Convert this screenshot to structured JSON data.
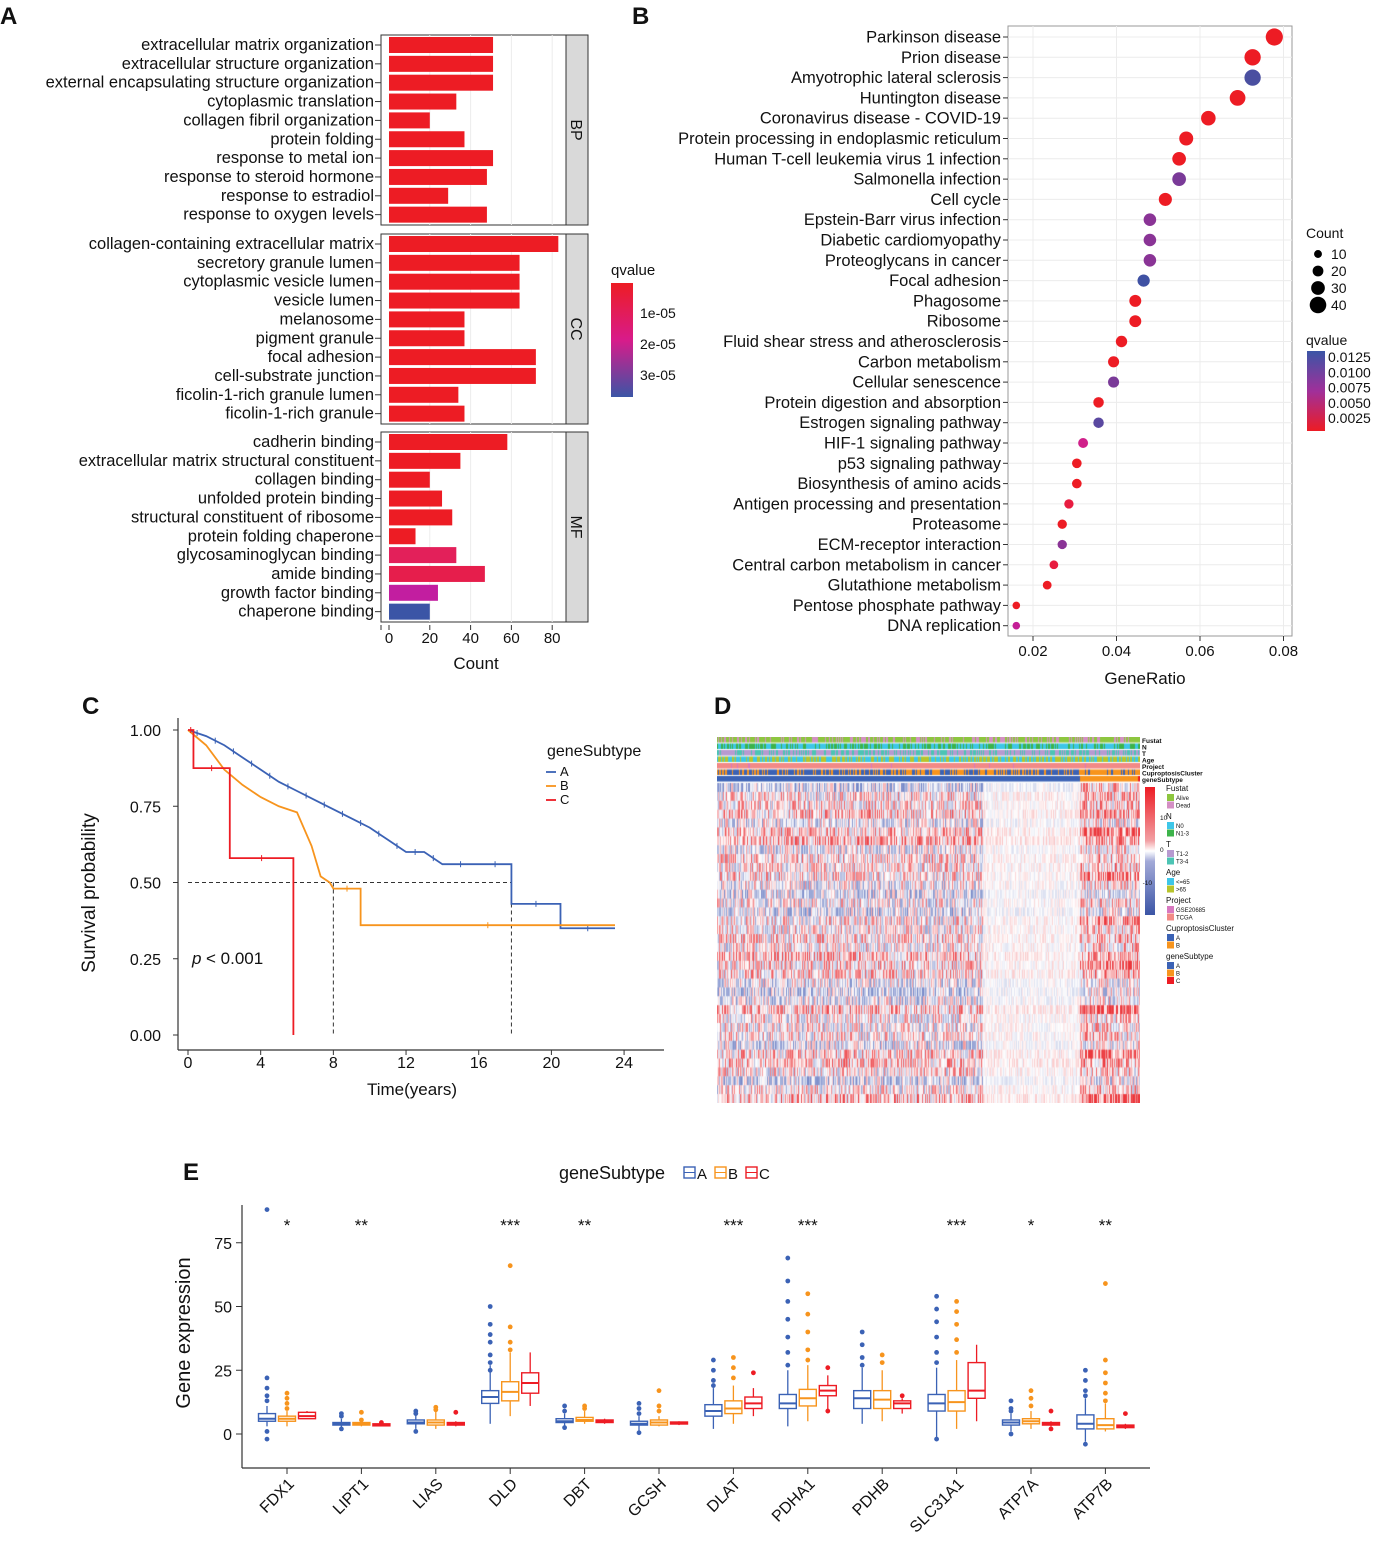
{
  "panel_labels": {
    "A": "A",
    "B": "B",
    "C": "C",
    "D": "D",
    "E": "E"
  },
  "chart_data": [
    {
      "id": "A",
      "type": "bar",
      "orientation": "horizontal",
      "xlabel": "Count",
      "xticks": [
        0,
        20,
        40,
        60,
        80
      ],
      "xlim": [
        0,
        88
      ],
      "legend": {
        "title": "qvalue",
        "ticks": [
          "1e-05",
          "2e-05",
          "3e-05"
        ]
      },
      "facets": [
        {
          "name": "BP",
          "categories": [
            "extracellular matrix organization",
            "extracellular structure organization",
            "external encapsulating structure organization",
            "cytoplasmic translation",
            "collagen fibril organization",
            "protein folding",
            "response to metal ion",
            "response to steroid hormone",
            "response to estradiol",
            "response to oxygen levels"
          ],
          "values": [
            51,
            51,
            51,
            33,
            20,
            37,
            51,
            48,
            29,
            48
          ],
          "colors": [
            "#ed1c24",
            "#ed1c24",
            "#ed1c24",
            "#ed1c24",
            "#ed1c24",
            "#ed1c24",
            "#ed1c24",
            "#ed1c24",
            "#ed1c24",
            "#ed1c24"
          ]
        },
        {
          "name": "CC",
          "categories": [
            "collagen-containing extracellular matrix",
            "secretory granule lumen",
            "cytoplasmic vesicle lumen",
            "vesicle lumen",
            "melanosome",
            "pigment granule",
            "focal adhesion",
            "cell-substrate junction",
            "ficolin-1-rich granule lumen",
            "ficolin-1-rich granule"
          ],
          "values": [
            83,
            64,
            64,
            64,
            37,
            37,
            72,
            72,
            34,
            37
          ],
          "colors": [
            "#ed1c24",
            "#ed1c24",
            "#ed1c24",
            "#ed1c24",
            "#ed1c24",
            "#ed1c24",
            "#ed1c24",
            "#ed1c24",
            "#ed1c24",
            "#ed1c24"
          ]
        },
        {
          "name": "MF",
          "categories": [
            "cadherin binding",
            "extracellular matrix structural constituent",
            "collagen binding",
            "unfolded protein binding",
            "structural constituent of ribosome",
            "protein folding chaperone",
            "glycosaminoglycan binding",
            "amide binding",
            "growth factor binding",
            "chaperone binding"
          ],
          "values": [
            58,
            35,
            20,
            26,
            31,
            13,
            33,
            47,
            24,
            20
          ],
          "colors": [
            "#ed1c24",
            "#ed1c24",
            "#ed1c24",
            "#ed1c24",
            "#ed1c24",
            "#ed1c24",
            "#e3205a",
            "#e61e4c",
            "#c21ea0",
            "#3b55a6"
          ]
        }
      ]
    },
    {
      "id": "B",
      "type": "scatter",
      "xlabel": "GeneRatio",
      "xticks": [
        "0.02",
        "0.04",
        "0.06",
        "0.08"
      ],
      "xlim": [
        0.013,
        0.081
      ],
      "size_legend": {
        "title": "Count",
        "values": [
          10,
          20,
          30,
          40
        ]
      },
      "color_legend": {
        "title": "qvalue",
        "ticks": [
          "0.0125",
          "0.0100",
          "0.0075",
          "0.0050",
          "0.0025"
        ]
      },
      "categories": [
        "Parkinson disease",
        "Prion disease",
        "Amyotrophic lateral sclerosis",
        "Huntington disease",
        "Coronavirus disease - COVID-19",
        "Protein processing in endoplasmic reticulum",
        "Human T-cell leukemia virus 1 infection",
        "Salmonella infection",
        "Cell cycle",
        "Epstein-Barr virus infection",
        "Diabetic cardiomyopathy",
        "Proteoglycans in cancer",
        "Focal adhesion",
        "Phagosome",
        "Ribosome",
        "Fluid shear stress and atherosclerosis",
        "Carbon metabolism",
        "Cellular senescence",
        "Protein digestion and absorption",
        "Estrogen signaling pathway",
        "HIF-1 signaling pathway",
        "p53 signaling pathway",
        "Biosynthesis of amino acids",
        "Antigen processing and presentation",
        "Proteasome",
        "ECM-receptor interaction",
        "Central carbon metabolism in cancer",
        "Glutathione metabolism",
        "Pentose phosphate pathway",
        "DNA replication"
      ],
      "x": [
        0.0778,
        0.0726,
        0.0726,
        0.069,
        0.062,
        0.0567,
        0.055,
        0.055,
        0.0517,
        0.048,
        0.048,
        0.048,
        0.0465,
        0.0445,
        0.0445,
        0.0412,
        0.0393,
        0.0393,
        0.0357,
        0.0357,
        0.032,
        0.0305,
        0.0305,
        0.0286,
        0.027,
        0.027,
        0.025,
        0.0234,
        0.016,
        0.016
      ],
      "count": [
        42,
        39,
        39,
        37,
        33,
        31,
        30,
        30,
        28,
        26,
        26,
        26,
        25,
        24,
        24,
        22,
        21,
        21,
        19,
        19,
        17,
        16,
        16,
        15,
        15,
        15,
        13,
        13,
        9,
        9
      ],
      "colors": [
        "#ed1c24",
        "#ed1c24",
        "#4a4fa0",
        "#ed1c24",
        "#ed1c24",
        "#ed1c24",
        "#ed1c24",
        "#7a3a98",
        "#ed1c24",
        "#8a3496",
        "#8a3496",
        "#8a3496",
        "#3f51a3",
        "#ed1c24",
        "#ed1c24",
        "#ed1c24",
        "#ed1c24",
        "#7a3a98",
        "#ed1c24",
        "#5a48a0",
        "#d0208a",
        "#ed1c24",
        "#ed1c24",
        "#e81c40",
        "#ed1c24",
        "#8a3496",
        "#e81c40",
        "#ed1c24",
        "#ed1c24",
        "#c41e96"
      ]
    },
    {
      "id": "C",
      "type": "line",
      "subtype": "kaplan-meier",
      "xlabel": "Time(years)",
      "ylabel": "Survival probability",
      "xticks": [
        0,
        4,
        8,
        12,
        16,
        20,
        24
      ],
      "yticks": [
        "0.00",
        "0.25",
        "0.50",
        "0.75",
        "1.00"
      ],
      "pvalue_prefix": "p",
      "pvalue_text": " < 0.001",
      "legend": {
        "title": "geneSubtype"
      },
      "medians": [
        5.8,
        8,
        17.8
      ],
      "series": [
        {
          "name": "A",
          "color": "#3b62b5",
          "x": [
            0,
            1,
            2,
            3,
            4,
            5,
            6,
            7,
            8,
            9,
            10,
            11,
            12,
            13,
            14,
            16,
            17.8,
            17.8,
            20.5,
            20.5,
            23.5
          ],
          "y": [
            1,
            0.98,
            0.95,
            0.91,
            0.87,
            0.83,
            0.8,
            0.77,
            0.74,
            0.71,
            0.68,
            0.64,
            0.6,
            0.6,
            0.56,
            0.56,
            0.56,
            0.43,
            0.43,
            0.35,
            0.35
          ]
        },
        {
          "name": "B",
          "color": "#f7941d",
          "x": [
            0,
            1,
            2,
            3,
            4,
            5,
            6,
            6.8,
            7.3,
            7.8,
            8,
            9.5,
            9.5,
            23.5
          ],
          "y": [
            1,
            0.95,
            0.87,
            0.82,
            0.78,
            0.75,
            0.73,
            0.62,
            0.52,
            0.5,
            0.48,
            0.48,
            0.36,
            0.36
          ]
        },
        {
          "name": "C",
          "color": "#ed1c24",
          "x": [
            0,
            0.3,
            0.3,
            2.3,
            2.3,
            5.8,
            5.8
          ],
          "y": [
            1,
            1,
            0.875,
            0.875,
            0.58,
            0.58,
            0
          ]
        }
      ]
    },
    {
      "id": "D",
      "type": "heatmap",
      "tracks": [
        "Fustat",
        "N",
        "T",
        "Age",
        "Project",
        "CuproptosisCluster",
        "geneSubtype"
      ],
      "scale_ticks": [
        "10",
        "0",
        "-10"
      ],
      "legend": [
        {
          "title": "Fustat",
          "items": [
            {
              "label": "Alive",
              "color": "#8dc63f"
            },
            {
              "label": "Dead",
              "color": "#d48fc4"
            }
          ]
        },
        {
          "title": "N",
          "items": [
            {
              "label": "N0",
              "color": "#3ec6e8"
            },
            {
              "label": "N1-3",
              "color": "#3cb34a"
            }
          ]
        },
        {
          "title": "T",
          "items": [
            {
              "label": "T1-2",
              "color": "#b79ad0"
            },
            {
              "label": "T3-4",
              "color": "#4cc4b4"
            }
          ]
        },
        {
          "title": "Age",
          "items": [
            {
              "label": "<=65",
              "color": "#3ec6e8"
            },
            {
              "label": ">65",
              "color": "#b8c42c"
            }
          ]
        },
        {
          "title": "Project",
          "items": [
            {
              "label": "GSE20685",
              "color": "#d878c0"
            },
            {
              "label": "TCGA",
              "color": "#f28a86"
            }
          ]
        },
        {
          "title": "CuproptosisCluster",
          "items": [
            {
              "label": "A",
              "color": "#3b62b5"
            },
            {
              "label": "B",
              "color": "#f7941d"
            }
          ]
        },
        {
          "title": "geneSubtype",
          "items": [
            {
              "label": "A",
              "color": "#3b62b5"
            },
            {
              "label": "B",
              "color": "#f7941d"
            },
            {
              "label": "C",
              "color": "#ed1c24"
            }
          ]
        }
      ]
    },
    {
      "id": "E",
      "type": "box",
      "ylabel": "Gene expression",
      "yticks": [
        0,
        25,
        50,
        75
      ],
      "ylim": [
        -6,
        90
      ],
      "legend": {
        "title": "geneSubtype",
        "groups": [
          "A",
          "B",
          "C"
        ],
        "colors": [
          "#3b62b5",
          "#f7941d",
          "#ed1c24"
        ]
      },
      "categories": [
        "FDX1",
        "LIPT1",
        "LIAS",
        "DLD",
        "DBT",
        "GCSH",
        "DLAT",
        "PDHA1",
        "PDHB",
        "SLC31A1",
        "ATP7A",
        "ATP7B"
      ],
      "significance": [
        "*",
        "**",
        "",
        "***",
        "**",
        "",
        "***",
        "***",
        "",
        "***",
        "*",
        "**"
      ],
      "stats_order": [
        "min",
        "q1",
        "median",
        "q3",
        "max"
      ],
      "series": [
        {
          "name": "A",
          "stats": [
            [
              3,
              5,
              6,
              8,
              11
            ],
            [
              2,
              3.5,
              4,
              4.5,
              6
            ],
            [
              2,
              4,
              4.5,
              5.5,
              8
            ],
            [
              4,
              12,
              14.5,
              17,
              27
            ],
            [
              3,
              4.5,
              5,
              6,
              8
            ],
            [
              1,
              3.5,
              4,
              5,
              7
            ],
            [
              2,
              7,
              9,
              11.5,
              18
            ],
            [
              3,
              10,
              12,
              15.5,
              25
            ],
            [
              4,
              10,
              14,
              17,
              26
            ],
            [
              -2,
              9,
              12,
              15.5,
              26
            ],
            [
              1,
              3.5,
              4.5,
              5.5,
              8
            ],
            [
              -3,
              2,
              4,
              7.5,
              14
            ]
          ],
          "outliers": [
            [
              88,
              22,
              18,
              15,
              13,
              1,
              -2
            ],
            [
              8,
              7,
              2
            ],
            [
              9,
              8,
              1
            ],
            [
              50,
              43,
              39,
              36,
              31,
              28,
              25
            ],
            [
              11,
              9,
              2.5
            ],
            [
              12,
              10,
              8,
              0.5
            ],
            [
              29,
              25,
              21,
              19
            ],
            [
              69,
              60,
              52,
              45,
              38,
              32,
              27
            ],
            [
              40,
              35,
              30,
              27
            ],
            [
              54,
              49,
              44,
              38,
              32,
              28,
              -2
            ],
            [
              13,
              10,
              9,
              0
            ],
            [
              25,
              21,
              17,
              15,
              -4
            ]
          ]
        },
        {
          "name": "B",
          "stats": [
            [
              3,
              5,
              6,
              7,
              9
            ],
            [
              3,
              3.5,
              4,
              4.5,
              5
            ],
            [
              2,
              3.5,
              4.5,
              5.5,
              9
            ],
            [
              7,
              13,
              16.5,
              20.5,
              32
            ],
            [
              4,
              5,
              5.5,
              6.5,
              9
            ],
            [
              3,
              3.5,
              4.5,
              5.5,
              7
            ],
            [
              4,
              8,
              10,
              13,
              19
            ],
            [
              5,
              11,
              14,
              17.5,
              27
            ],
            [
              5,
              10,
              13.5,
              17,
              25
            ],
            [
              2,
              9,
              12.5,
              17,
              29
            ],
            [
              2,
              4,
              5,
              6,
              9
            ],
            [
              1,
              2,
              3.5,
              6,
              12
            ]
          ],
          "outliers": [
            [
              16,
              14,
              12,
              10
            ],
            [
              8.5,
              5.5
            ],
            [
              10.5,
              9.5
            ],
            [
              66,
              42,
              36,
              33
            ],
            [
              11,
              10
            ],
            [
              17,
              11,
              9
            ],
            [
              30,
              26,
              22
            ],
            [
              55,
              47,
              40,
              33,
              29
            ],
            [
              31,
              28
            ],
            [
              52,
              48,
              43,
              37,
              32
            ],
            [
              17,
              14,
              11
            ],
            [
              59,
              29,
              24,
              20,
              16,
              13
            ]
          ]
        },
        {
          "name": "C",
          "stats": [
            [
              6,
              6,
              7,
              8.5,
              9
            ],
            [
              3,
              3.2,
              3.5,
              4,
              4
            ],
            [
              3,
              3.5,
              4,
              4.5,
              5
            ],
            [
              11,
              16,
              20,
              24,
              32
            ],
            [
              4,
              4.5,
              5,
              5.5,
              6
            ],
            [
              3.5,
              4,
              4.3,
              4.7,
              5
            ],
            [
              7,
              10,
              12,
              14.5,
              18
            ],
            [
              9,
              15,
              17,
              19,
              23
            ],
            [
              8,
              10,
              12,
              13,
              14
            ],
            [
              5,
              14,
              17,
              28,
              35
            ],
            [
              3,
              3.5,
              4,
              4.5,
              5
            ],
            [
              2,
              2.5,
              3,
              3.5,
              4
            ]
          ],
          "outliers": [
            [],
            [
              4.5
            ],
            [
              8.5
            ],
            [],
            [],
            [],
            [
              24
            ],
            [
              26,
              9
            ],
            [
              15
            ],
            [],
            [
              9,
              2
            ],
            [
              8
            ]
          ]
        }
      ]
    }
  ]
}
